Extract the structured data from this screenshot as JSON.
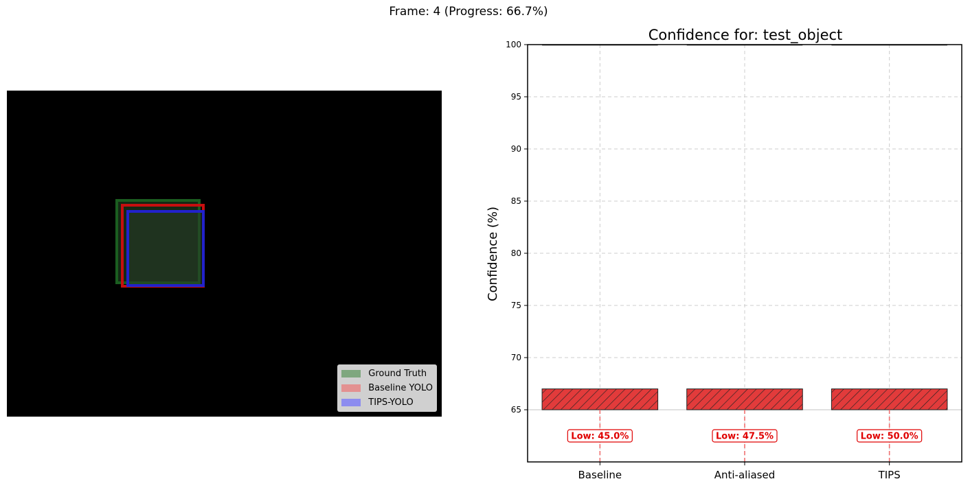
{
  "suptitle": "Frame: 4 (Progress: 66.7%)",
  "detection": {
    "background": "#000000",
    "legend": [
      {
        "label": "Ground Truth",
        "color": "#7fa77f"
      },
      {
        "label": "Baseline YOLO",
        "color": "#e39191"
      },
      {
        "label": "TIPS-YOLO",
        "color": "#8c8cef"
      }
    ]
  },
  "chart_data": {
    "type": "bar",
    "title": "Confidence for: test_object",
    "ylabel": "Confidence (%)",
    "xlabel": "",
    "categories": [
      "Baseline",
      "Anti-aliased",
      "TIPS"
    ],
    "values": [
      45.0,
      47.5,
      50.0
    ],
    "bar_display": {
      "bottom": 65,
      "top": 67
    },
    "low_labels": [
      "Low: 45.0%",
      "Low: 47.5%",
      "Low: 50.0%"
    ],
    "ylim": [
      60,
      100
    ],
    "yticks": [
      65,
      70,
      75,
      80,
      85,
      90,
      95,
      100
    ],
    "bar_color": "#e23b3b",
    "hatch": "///",
    "grid": true
  }
}
